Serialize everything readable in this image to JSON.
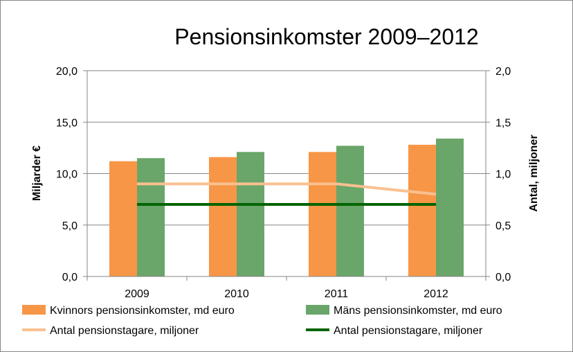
{
  "chart_data": {
    "type": "bar",
    "title": "Pensionsinkomster 2009–2012",
    "ylabel": "Miljarder €",
    "y2label": "Antal, miljoner",
    "categories": [
      "2009",
      "2010",
      "2011",
      "2012"
    ],
    "ylim": [
      0,
      20
    ],
    "y2lim": [
      0,
      2
    ],
    "yticks": [
      "0,0",
      "5,0",
      "10,0",
      "15,0",
      "20,0"
    ],
    "y2ticks": [
      "0,0",
      "0,5",
      "1,0",
      "1,5",
      "2,0"
    ],
    "grid": true,
    "legend_position": "bottom",
    "series": [
      {
        "name": "Kvinnors pensionsinkomster, md euro",
        "kind": "bar",
        "axis": "left",
        "color": "#F79646",
        "values": [
          11.2,
          11.6,
          12.1,
          12.8
        ]
      },
      {
        "name": "Mäns pensionsinkomster, md euro",
        "kind": "bar",
        "axis": "left",
        "color": "#6AA56A",
        "values": [
          11.5,
          12.1,
          12.7,
          13.4
        ]
      },
      {
        "name": "Antal pensionstagare, miljoner",
        "kind": "line",
        "axis": "right",
        "color": "#FAC090",
        "values": [
          0.9,
          0.9,
          0.9,
          0.8
        ]
      },
      {
        "name": "Antal pensionstagare, miljoner",
        "kind": "line",
        "axis": "right",
        "color": "#006400",
        "values": [
          0.7,
          0.7,
          0.7,
          0.7
        ]
      }
    ]
  }
}
